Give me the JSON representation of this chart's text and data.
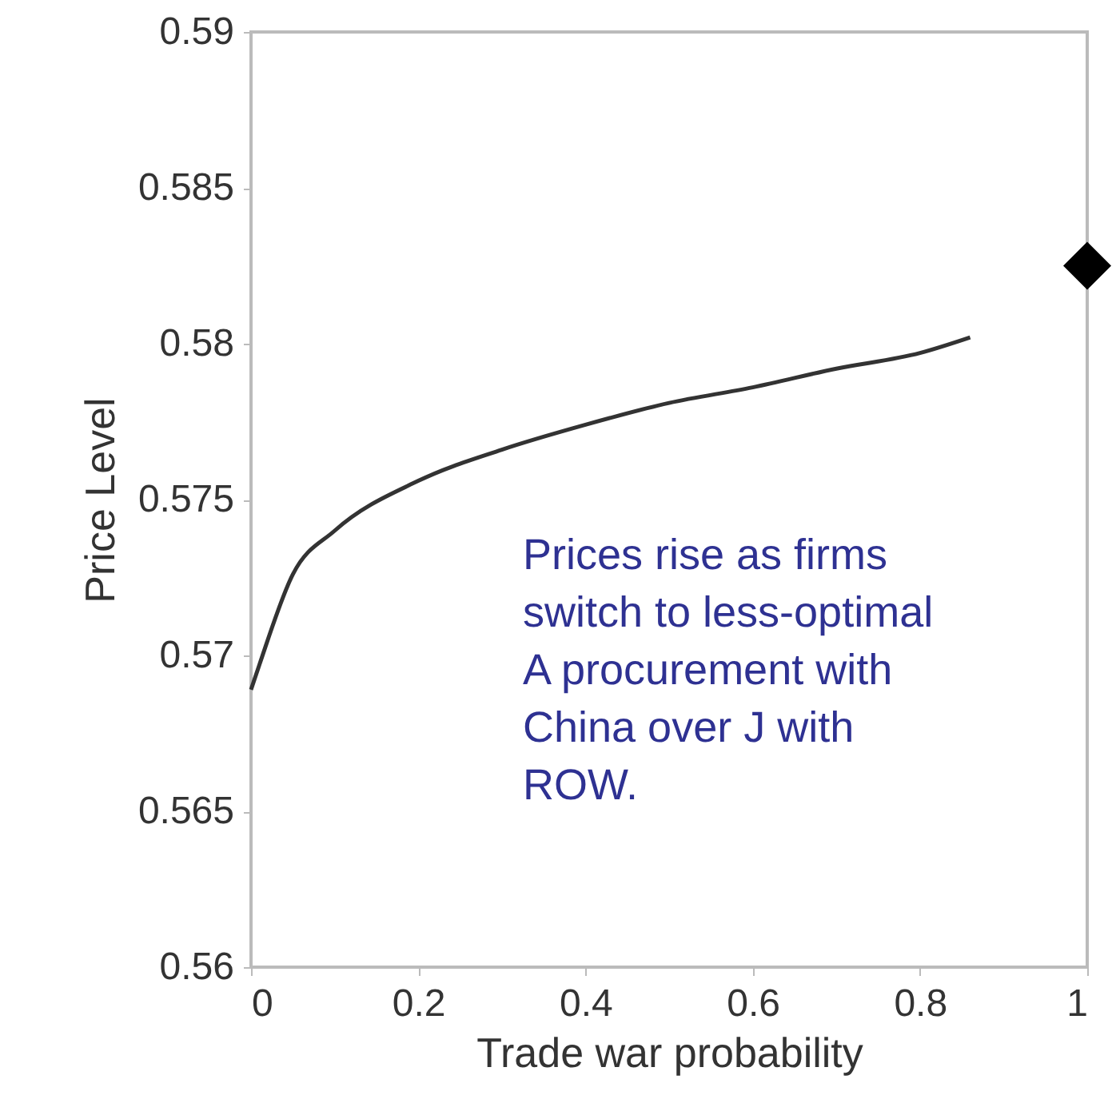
{
  "chart_data": {
    "type": "line",
    "xlabel": "Trade war probability",
    "ylabel": "Price Level",
    "xlim": [
      0,
      1
    ],
    "ylim": [
      0.56,
      0.59
    ],
    "xticks": [
      0,
      0.2,
      0.4,
      0.6,
      0.8,
      1
    ],
    "yticks": [
      0.56,
      0.565,
      0.57,
      0.575,
      0.58,
      0.585,
      0.59
    ],
    "grid": false,
    "series": [
      {
        "color": "#333333",
        "marker": "none",
        "line_style": "solid",
        "x": [
          0,
          0.01,
          0.05,
          0.1,
          0.2,
          0.3,
          0.4,
          0.5,
          0.6,
          0.7,
          0.8,
          0.86
        ],
        "values": [
          0.5689,
          0.5697,
          0.5726,
          0.574,
          0.5756,
          0.5766,
          0.5774,
          0.5781,
          0.5786,
          0.5792,
          0.5797,
          0.5802
        ]
      },
      {
        "type": "scatter",
        "color": "#000000",
        "marker": "diamond",
        "x": [
          1
        ],
        "values": [
          0.5825
        ]
      }
    ],
    "annotations": [
      "Prices rise as firms\nswitch to less-optimal\nA procurement with\nChina over J with\nROW."
    ]
  }
}
